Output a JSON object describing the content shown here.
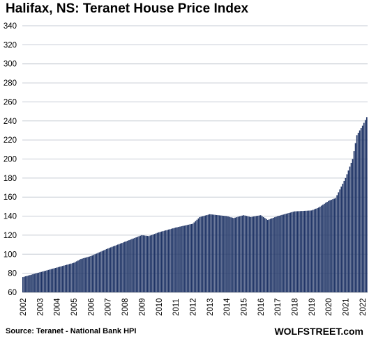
{
  "chart_data": {
    "type": "bar",
    "title": "Halifax, NS: Teranet House Price Index",
    "source": "Source: Teranet - National Bank HPI",
    "brand": "WOLFSTREET.com",
    "xlabel": "",
    "ylabel": "",
    "ylim": [
      60,
      340
    ],
    "y_ticks": [
      60,
      80,
      100,
      120,
      140,
      160,
      180,
      200,
      220,
      240,
      260,
      280,
      300,
      320,
      340
    ],
    "x_ticks": [
      "2002",
      "2003",
      "2004",
      "2005",
      "2006",
      "2007",
      "2008",
      "2009",
      "2010",
      "2011",
      "2012",
      "2013",
      "2014",
      "2015",
      "2016",
      "2017",
      "2018",
      "2019",
      "2020",
      "2021",
      "2022"
    ],
    "grid": true,
    "legend": "none",
    "bar_color": "#1f3466",
    "start": "2002-01",
    "end": "2022-04",
    "anchors": [
      [
        "2002-01",
        76
      ],
      [
        "2003-01",
        81
      ],
      [
        "2004-01",
        86
      ],
      [
        "2005-01",
        91
      ],
      [
        "2005-06",
        95
      ],
      [
        "2006-01",
        98
      ],
      [
        "2007-01",
        106
      ],
      [
        "2008-01",
        113
      ],
      [
        "2009-01",
        120
      ],
      [
        "2009-06",
        119
      ],
      [
        "2010-01",
        123
      ],
      [
        "2011-01",
        128
      ],
      [
        "2012-01",
        132
      ],
      [
        "2012-06",
        139
      ],
      [
        "2013-01",
        142
      ],
      [
        "2014-01",
        140
      ],
      [
        "2014-06",
        138
      ],
      [
        "2015-01",
        141
      ],
      [
        "2015-06",
        139
      ],
      [
        "2016-01",
        141
      ],
      [
        "2016-06",
        136
      ],
      [
        "2017-01",
        140
      ],
      [
        "2018-01",
        145
      ],
      [
        "2019-01",
        146
      ],
      [
        "2019-06",
        149
      ],
      [
        "2020-01",
        156
      ],
      [
        "2020-06",
        159
      ],
      [
        "2021-01",
        180
      ],
      [
        "2021-06",
        200
      ],
      [
        "2021-09",
        225
      ],
      [
        "2022-01",
        235
      ],
      [
        "2022-04",
        244
      ]
    ]
  }
}
